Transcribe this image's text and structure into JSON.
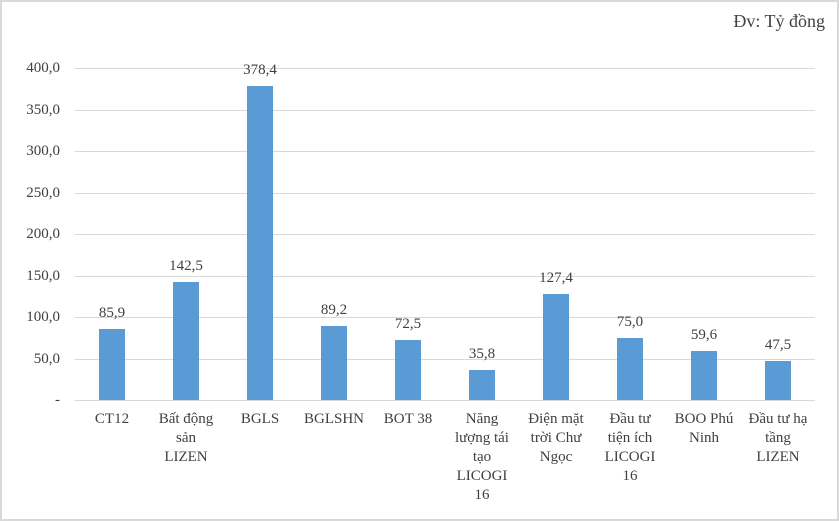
{
  "chart_data": {
    "type": "bar",
    "title": "",
    "unit_label": "Đv: Tỷ đồng",
    "categories": [
      "CT12",
      "Bất động sản LIZEN",
      "BGLS",
      "BGLSHN",
      "BOT 38",
      "Năng lượng tái tạo LICOGI 16",
      "Điện mặt trời Chư Ngọc",
      "Đầu tư tiện ích LICOGI 16",
      "BOO Phú Ninh",
      "Đầu tư hạ tầng LIZEN"
    ],
    "category_lines": [
      "CT12",
      "Bất động\nsản\nLIZEN",
      "BGLS",
      "BGLSHN",
      "BOT 38",
      "Năng\nlượng tái\ntạo\nLICOGI\n16",
      "Điện mặt\ntrời Chư\nNgọc",
      "Đầu tư\ntiện ích\nLICOGI\n16",
      "BOO Phú\nNinh",
      "Đầu tư hạ\ntầng\nLIZEN"
    ],
    "values": [
      85.9,
      142.5,
      378.4,
      89.2,
      72.5,
      35.8,
      127.4,
      75.0,
      59.6,
      47.5
    ],
    "value_labels": [
      "85,9",
      "142,5",
      "378,4",
      "89,2",
      "72,5",
      "35,8",
      "127,4",
      "75,0",
      "59,6",
      "47,5"
    ],
    "xlabel": "",
    "ylabel": "",
    "ylim": [
      0,
      400
    ],
    "yticks": {
      "values": [
        400,
        350,
        300,
        250,
        200,
        150,
        100,
        50,
        0
      ],
      "labels": [
        "400,0",
        "350,0",
        "300,0",
        "250,0",
        "200,0",
        "150,0",
        "100,0",
        "50,0",
        "-"
      ]
    },
    "grid": true,
    "legend": "none",
    "colors": {
      "bar": "#5B9BD5",
      "gridline": "#D9D9D9",
      "text": "#404040",
      "border": "#D9D9D9",
      "background": "#FFFFFF"
    }
  }
}
